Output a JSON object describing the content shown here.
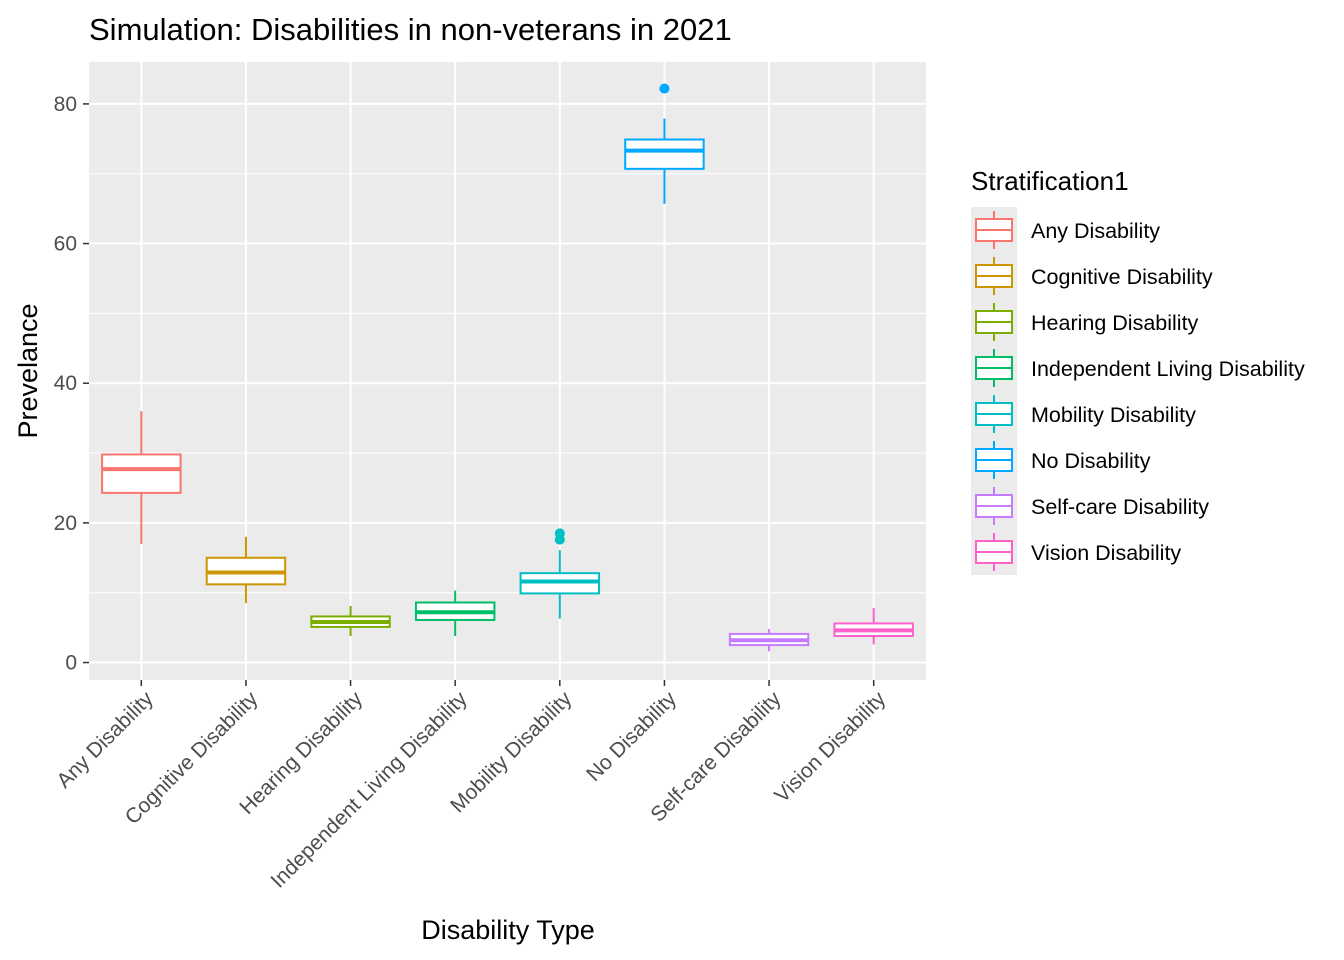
{
  "chart_data": {
    "type": "boxplot",
    "title": "Simulation: Disabilities in non-veterans in 2021",
    "xlabel": "Disability Type",
    "ylabel": "Prevelance",
    "ylim": [
      -2.5,
      86
    ],
    "yticks": [
      0,
      20,
      40,
      60,
      80
    ],
    "yticks_labels": [
      "0",
      "20",
      "40",
      "60",
      "80"
    ],
    "grid": true,
    "panel_background": "#ebebeb",
    "grid_color": "#ffffff",
    "legend": {
      "title": "Stratification1",
      "position": "right"
    },
    "categories": [
      "Any Disability",
      "Cognitive Disability",
      "Hearing Disability",
      "Independent Living Disability",
      "Mobility Disability",
      "No Disability",
      "Self-care Disability",
      "Vision Disability"
    ],
    "series": [
      {
        "name": "Any Disability",
        "color": "#F8766D",
        "min": 17.0,
        "q1": 24.3,
        "median": 27.7,
        "q3": 29.8,
        "max": 36.0,
        "outliers": []
      },
      {
        "name": "Cognitive Disability",
        "color": "#CD9600",
        "min": 8.5,
        "q1": 11.2,
        "median": 12.9,
        "q3": 15.0,
        "max": 18.0,
        "outliers": []
      },
      {
        "name": "Hearing Disability",
        "color": "#7CAE00",
        "min": 3.8,
        "q1": 5.1,
        "median": 5.8,
        "q3": 6.6,
        "max": 8.1,
        "outliers": []
      },
      {
        "name": "Independent Living Disability",
        "color": "#00BE67",
        "min": 3.8,
        "q1": 6.1,
        "median": 7.2,
        "q3": 8.6,
        "max": 10.3,
        "outliers": []
      },
      {
        "name": "Mobility Disability",
        "color": "#00BFC4",
        "min": 6.3,
        "q1": 9.9,
        "median": 11.6,
        "q3": 12.8,
        "max": 16.1,
        "outliers": [
          17.6,
          18.5
        ]
      },
      {
        "name": "No Disability",
        "color": "#00A9FF",
        "min": 65.7,
        "q1": 70.7,
        "median": 73.3,
        "q3": 74.9,
        "max": 77.9,
        "outliers": [
          82.2
        ]
      },
      {
        "name": "Self-care Disability",
        "color": "#C77CFF",
        "min": 1.6,
        "q1": 2.5,
        "median": 3.2,
        "q3": 4.1,
        "max": 4.8,
        "outliers": []
      },
      {
        "name": "Vision Disability",
        "color": "#FF61CC",
        "min": 2.6,
        "q1": 3.8,
        "median": 4.6,
        "q3": 5.6,
        "max": 7.8,
        "outliers": []
      }
    ]
  }
}
